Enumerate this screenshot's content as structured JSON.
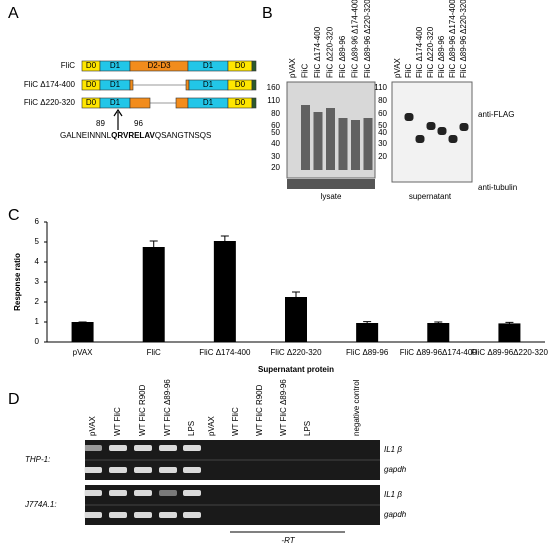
{
  "panels": {
    "a": "A",
    "b": "B",
    "c": "C",
    "d": "D"
  },
  "domains": {
    "rows": [
      "FliC",
      "FliC Δ174-400",
      "FliC Δ220-320"
    ],
    "d0": "D0",
    "d1": "D1",
    "d23": "D2-D3",
    "pos_start": "89",
    "pos_end": "96",
    "seq_pre": "GALNEINNNL",
    "seq_bold": "QRVRELAV",
    "seq_post": "QSANGTNSQS"
  },
  "blot": {
    "lanes": [
      "pVAX",
      "FliC",
      "FliC Δ174-400",
      "FliC Δ220-320",
      "FliC Δ89-96",
      "FliC Δ89-96 Δ174-400",
      "FliC Δ89-96 Δ220-320"
    ],
    "lysate_markers": [
      "160",
      "110",
      "80",
      "60",
      "50",
      "40",
      "30",
      "20"
    ],
    "supernatant_markers": [
      "110",
      "80",
      "60",
      "50",
      "40",
      "30",
      "20"
    ],
    "lysate": "lysate",
    "supernatant": "supernatant",
    "anti_flag": "anti-FLAG",
    "anti_tubulin": "anti-tubulin"
  },
  "chart_data": {
    "type": "bar",
    "y_label": "Response ratio",
    "x_label": "Supernatant protein",
    "categories": [
      "pVAX",
      "FliC",
      "FliC Δ174-400",
      "FliC Δ220-320",
      "FliC Δ89-96",
      "FliC Δ89-96Δ174-400",
      "FliC Δ89-96Δ220-320"
    ],
    "values": [
      1,
      4.75,
      5.05,
      2.25,
      0.95,
      0.95,
      0.93
    ],
    "errors": [
      0,
      0.3,
      0.25,
      0.25,
      0.07,
      0.05,
      0.05
    ],
    "color": "#000000",
    "ylim": [
      0,
      6
    ],
    "yticks": [
      0,
      1,
      2,
      3,
      4,
      5,
      6
    ],
    "grid": false
  },
  "gel": {
    "lanes": [
      "pVAX",
      "WT FliC",
      "WT FliC R90D",
      "WT FliC Δ89-96",
      "LPS",
      "pVAX",
      "WT FliC",
      "WT FliC R90D",
      "WT FliC Δ89-96",
      "LPS",
      "negative control"
    ],
    "rows": [
      "THP-1:",
      "J774A.1:"
    ],
    "genes": [
      "IL1 β",
      "gapdh"
    ],
    "minus_rt": "-RT"
  }
}
